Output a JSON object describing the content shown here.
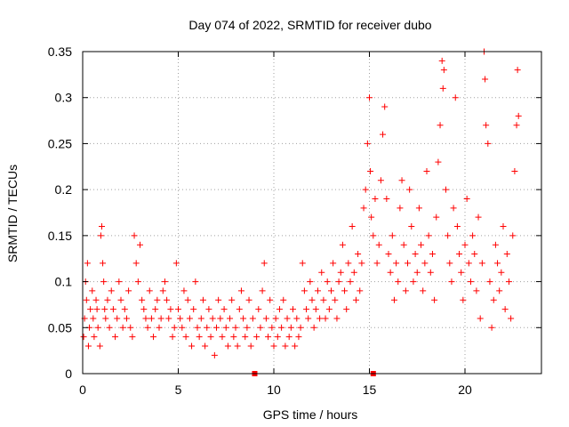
{
  "chart_data": {
    "type": "scatter",
    "title": "Day 074 of 2022, SRMTID for receiver dubo",
    "xlabel": "GPS time / hours",
    "ylabel": "SRMTID / TECUs",
    "xlim": [
      0,
      24
    ],
    "ylim": [
      0,
      0.35
    ],
    "xticks": [
      0,
      5,
      10,
      15,
      20
    ],
    "xtick_labels": [
      "0",
      "5",
      "10",
      "15",
      "20"
    ],
    "yticks": [
      0,
      0.05,
      0.1,
      0.15,
      0.2,
      0.25,
      0.3,
      0.35
    ],
    "ytick_labels": [
      "0",
      "0.05",
      "0.1",
      "0.15",
      "0.2",
      "0.25",
      "0.3",
      "0.35"
    ],
    "grid": true,
    "marker": "+",
    "color": "#ff0000",
    "gap_markers_x": [
      9.0,
      15.2
    ],
    "series": [
      {
        "name": "SRMTID",
        "points": [
          [
            0.05,
            0.04
          ],
          [
            0.1,
            0.06
          ],
          [
            0.15,
            0.1
          ],
          [
            0.2,
            0.08
          ],
          [
            0.25,
            0.12
          ],
          [
            0.3,
            0.03
          ],
          [
            0.35,
            0.05
          ],
          [
            0.4,
            0.07
          ],
          [
            0.5,
            0.09
          ],
          [
            0.55,
            0.06
          ],
          [
            0.6,
            0.04
          ],
          [
            0.7,
            0.08
          ],
          [
            0.75,
            0.07
          ],
          [
            0.8,
            0.05
          ],
          [
            0.9,
            0.03
          ],
          [
            0.95,
            0.15
          ],
          [
            1.0,
            0.16
          ],
          [
            1.05,
            0.12
          ],
          [
            1.1,
            0.1
          ],
          [
            1.15,
            0.07
          ],
          [
            1.2,
            0.06
          ],
          [
            1.3,
            0.08
          ],
          [
            1.4,
            0.05
          ],
          [
            1.5,
            0.09
          ],
          [
            1.6,
            0.07
          ],
          [
            1.7,
            0.04
          ],
          [
            1.8,
            0.06
          ],
          [
            1.9,
            0.1
          ],
          [
            2.0,
            0.08
          ],
          [
            2.1,
            0.05
          ],
          [
            2.2,
            0.07
          ],
          [
            2.3,
            0.06
          ],
          [
            2.4,
            0.09
          ],
          [
            2.5,
            0.05
          ],
          [
            2.6,
            0.04
          ],
          [
            2.7,
            0.15
          ],
          [
            2.8,
            0.12
          ],
          [
            2.9,
            0.1
          ],
          [
            3.0,
            0.14
          ],
          [
            3.1,
            0.08
          ],
          [
            3.2,
            0.07
          ],
          [
            3.3,
            0.06
          ],
          [
            3.4,
            0.05
          ],
          [
            3.5,
            0.09
          ],
          [
            3.6,
            0.06
          ],
          [
            3.7,
            0.04
          ],
          [
            3.8,
            0.07
          ],
          [
            3.9,
            0.08
          ],
          [
            4.0,
            0.05
          ],
          [
            4.1,
            0.06
          ],
          [
            4.2,
            0.09
          ],
          [
            4.3,
            0.1
          ],
          [
            4.4,
            0.08
          ],
          [
            4.5,
            0.06
          ],
          [
            4.6,
            0.07
          ],
          [
            4.7,
            0.04
          ],
          [
            4.8,
            0.05
          ],
          [
            4.9,
            0.12
          ],
          [
            5.0,
            0.07
          ],
          [
            5.1,
            0.06
          ],
          [
            5.2,
            0.05
          ],
          [
            5.3,
            0.09
          ],
          [
            5.4,
            0.04
          ],
          [
            5.5,
            0.08
          ],
          [
            5.6,
            0.06
          ],
          [
            5.7,
            0.03
          ],
          [
            5.8,
            0.07
          ],
          [
            5.9,
            0.1
          ],
          [
            6.0,
            0.05
          ],
          [
            6.1,
            0.04
          ],
          [
            6.2,
            0.06
          ],
          [
            6.3,
            0.08
          ],
          [
            6.4,
            0.03
          ],
          [
            6.5,
            0.05
          ],
          [
            6.6,
            0.07
          ],
          [
            6.7,
            0.04
          ],
          [
            6.8,
            0.06
          ],
          [
            6.9,
            0.02
          ],
          [
            7.0,
            0.05
          ],
          [
            7.1,
            0.08
          ],
          [
            7.2,
            0.06
          ],
          [
            7.3,
            0.04
          ],
          [
            7.4,
            0.07
          ],
          [
            7.5,
            0.05
          ],
          [
            7.6,
            0.03
          ],
          [
            7.7,
            0.06
          ],
          [
            7.8,
            0.08
          ],
          [
            7.9,
            0.04
          ],
          [
            8.0,
            0.05
          ],
          [
            8.1,
            0.03
          ],
          [
            8.2,
            0.07
          ],
          [
            8.3,
            0.09
          ],
          [
            8.4,
            0.06
          ],
          [
            8.5,
            0.04
          ],
          [
            8.6,
            0.05
          ],
          [
            8.7,
            0.08
          ],
          [
            8.8,
            0.03
          ],
          [
            8.9,
            0.06
          ],
          [
            9.1,
            0.04
          ],
          [
            9.2,
            0.07
          ],
          [
            9.3,
            0.05
          ],
          [
            9.4,
            0.09
          ],
          [
            9.5,
            0.12
          ],
          [
            9.6,
            0.06
          ],
          [
            9.7,
            0.04
          ],
          [
            9.8,
            0.08
          ],
          [
            9.9,
            0.05
          ],
          [
            10.0,
            0.03
          ],
          [
            10.1,
            0.06
          ],
          [
            10.2,
            0.04
          ],
          [
            10.3,
            0.07
          ],
          [
            10.4,
            0.05
          ],
          [
            10.5,
            0.08
          ],
          [
            10.6,
            0.03
          ],
          [
            10.7,
            0.06
          ],
          [
            10.8,
            0.04
          ],
          [
            10.9,
            0.05
          ],
          [
            11.0,
            0.07
          ],
          [
            11.1,
            0.03
          ],
          [
            11.2,
            0.06
          ],
          [
            11.3,
            0.04
          ],
          [
            11.4,
            0.05
          ],
          [
            11.5,
            0.12
          ],
          [
            11.6,
            0.09
          ],
          [
            11.7,
            0.07
          ],
          [
            11.8,
            0.06
          ],
          [
            11.9,
            0.1
          ],
          [
            12.0,
            0.08
          ],
          [
            12.1,
            0.05
          ],
          [
            12.2,
            0.07
          ],
          [
            12.3,
            0.09
          ],
          [
            12.4,
            0.06
          ],
          [
            12.5,
            0.11
          ],
          [
            12.6,
            0.08
          ],
          [
            12.7,
            0.06
          ],
          [
            12.8,
            0.1
          ],
          [
            12.9,
            0.07
          ],
          [
            13.0,
            0.09
          ],
          [
            13.1,
            0.12
          ],
          [
            13.2,
            0.08
          ],
          [
            13.3,
            0.06
          ],
          [
            13.4,
            0.1
          ],
          [
            13.5,
            0.11
          ],
          [
            13.6,
            0.14
          ],
          [
            13.7,
            0.09
          ],
          [
            13.8,
            0.07
          ],
          [
            13.9,
            0.12
          ],
          [
            14.0,
            0.1
          ],
          [
            14.1,
            0.16
          ],
          [
            14.2,
            0.11
          ],
          [
            14.3,
            0.08
          ],
          [
            14.4,
            0.13
          ],
          [
            14.5,
            0.09
          ],
          [
            14.6,
            0.12
          ],
          [
            14.7,
            0.18
          ],
          [
            14.8,
            0.2
          ],
          [
            14.9,
            0.25
          ],
          [
            15.0,
            0.3
          ],
          [
            15.05,
            0.22
          ],
          [
            15.1,
            0.17
          ],
          [
            15.2,
            0.15
          ],
          [
            15.3,
            0.19
          ],
          [
            15.4,
            0.12
          ],
          [
            15.5,
            0.14
          ],
          [
            15.6,
            0.21
          ],
          [
            15.7,
            0.26
          ],
          [
            15.8,
            0.29
          ],
          [
            15.9,
            0.19
          ],
          [
            16.0,
            0.13
          ],
          [
            16.1,
            0.11
          ],
          [
            16.2,
            0.15
          ],
          [
            16.3,
            0.08
          ],
          [
            16.4,
            0.12
          ],
          [
            16.5,
            0.1
          ],
          [
            16.6,
            0.18
          ],
          [
            16.7,
            0.21
          ],
          [
            16.8,
            0.14
          ],
          [
            16.9,
            0.09
          ],
          [
            17.0,
            0.12
          ],
          [
            17.1,
            0.2
          ],
          [
            17.2,
            0.16
          ],
          [
            17.3,
            0.1
          ],
          [
            17.4,
            0.13
          ],
          [
            17.5,
            0.11
          ],
          [
            17.6,
            0.18
          ],
          [
            17.7,
            0.14
          ],
          [
            17.8,
            0.09
          ],
          [
            17.9,
            0.12
          ],
          [
            18.0,
            0.22
          ],
          [
            18.1,
            0.15
          ],
          [
            18.2,
            0.11
          ],
          [
            18.3,
            0.13
          ],
          [
            18.4,
            0.08
          ],
          [
            18.5,
            0.17
          ],
          [
            18.6,
            0.23
          ],
          [
            18.7,
            0.27
          ],
          [
            18.8,
            0.34
          ],
          [
            18.85,
            0.31
          ],
          [
            18.9,
            0.33
          ],
          [
            19.0,
            0.2
          ],
          [
            19.1,
            0.15
          ],
          [
            19.2,
            0.12
          ],
          [
            19.3,
            0.1
          ],
          [
            19.4,
            0.18
          ],
          [
            19.5,
            0.3
          ],
          [
            19.6,
            0.16
          ],
          [
            19.7,
            0.13
          ],
          [
            19.8,
            0.11
          ],
          [
            19.9,
            0.08
          ],
          [
            20.0,
            0.14
          ],
          [
            20.1,
            0.19
          ],
          [
            20.2,
            0.12
          ],
          [
            20.3,
            0.1
          ],
          [
            20.4,
            0.15
          ],
          [
            20.5,
            0.13
          ],
          [
            20.6,
            0.09
          ],
          [
            20.7,
            0.17
          ],
          [
            20.8,
            0.06
          ],
          [
            20.9,
            0.12
          ],
          [
            21.0,
            0.35
          ],
          [
            21.05,
            0.32
          ],
          [
            21.1,
            0.27
          ],
          [
            21.2,
            0.25
          ],
          [
            21.3,
            0.1
          ],
          [
            21.4,
            0.05
          ],
          [
            21.5,
            0.08
          ],
          [
            21.6,
            0.14
          ],
          [
            21.7,
            0.12
          ],
          [
            21.8,
            0.09
          ],
          [
            21.9,
            0.11
          ],
          [
            22.0,
            0.16
          ],
          [
            22.1,
            0.07
          ],
          [
            22.2,
            0.13
          ],
          [
            22.3,
            0.1
          ],
          [
            22.4,
            0.06
          ],
          [
            22.5,
            0.15
          ],
          [
            22.6,
            0.22
          ],
          [
            22.7,
            0.27
          ],
          [
            22.75,
            0.33
          ],
          [
            22.8,
            0.28
          ]
        ]
      }
    ]
  }
}
